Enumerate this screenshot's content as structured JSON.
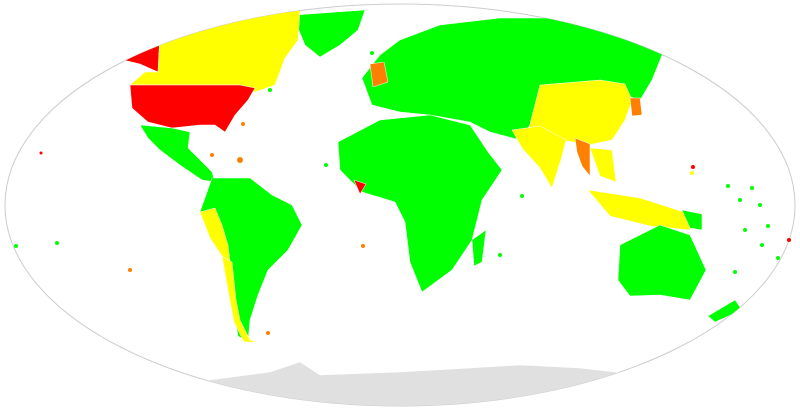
{
  "map": {
    "projection": "Robinson",
    "colors": {
      "green": "#00ff00",
      "yellow": "#ffff00",
      "orange": "#ff8000",
      "red": "#ff0000",
      "no_data": "#e0e0e0",
      "outline": "#cccccc",
      "ocean": "#ffffff"
    }
  }
}
